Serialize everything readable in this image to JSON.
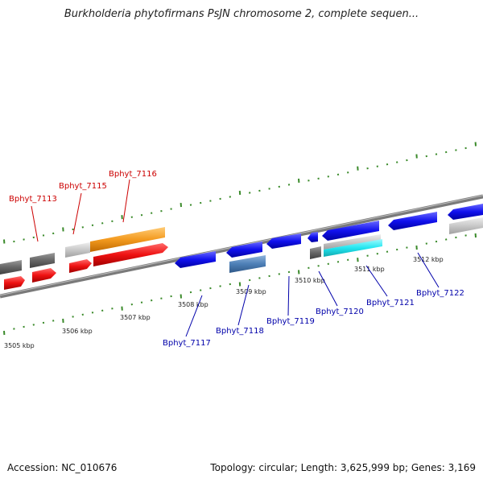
{
  "title": "Burkholderia phytofirmans PsJN chromosome 2, complete sequen...",
  "footer": {
    "accession_label": "Accession:",
    "accession": "NC_010676",
    "info": "Topology: circular; Length: 3,625,999 bp; Genes: 3,169"
  },
  "scale_labels": [
    {
      "text": "3505 kbp"
    },
    {
      "text": "3506 kbp"
    },
    {
      "text": "3507 kbp"
    },
    {
      "text": "3508 kbp"
    },
    {
      "text": "3509 kbp"
    },
    {
      "text": "3510 kbp"
    },
    {
      "text": "3511 kbp"
    },
    {
      "text": "3512 kbp"
    }
  ],
  "gene_labels": [
    {
      "text": "Bphyt_7113",
      "strand": "top"
    },
    {
      "text": "Bphyt_7115",
      "strand": "top"
    },
    {
      "text": "Bphyt_7116",
      "strand": "top"
    },
    {
      "text": "Bphyt_7117",
      "strand": "bottom"
    },
    {
      "text": "Bphyt_7118",
      "strand": "bottom"
    },
    {
      "text": "Bphyt_7119",
      "strand": "bottom"
    },
    {
      "text": "Bphyt_7120",
      "strand": "bottom"
    },
    {
      "text": "Bphyt_7121",
      "strand": "bottom"
    },
    {
      "text": "Bphyt_7122",
      "strand": "bottom"
    }
  ],
  "colors": {
    "red": "#ee1111",
    "orange": "#f39a1f",
    "blue": "#1111ee",
    "steel_blue": "#4d7fb6",
    "cyan": "#22e6f0",
    "dark_gray": "#666666",
    "light_gray": "#c8c8c8",
    "backbone": "#8a8a8a",
    "tick_green": "#3a8a2a",
    "top_label": "#cc0000",
    "bottom_label": "#0000aa"
  }
}
